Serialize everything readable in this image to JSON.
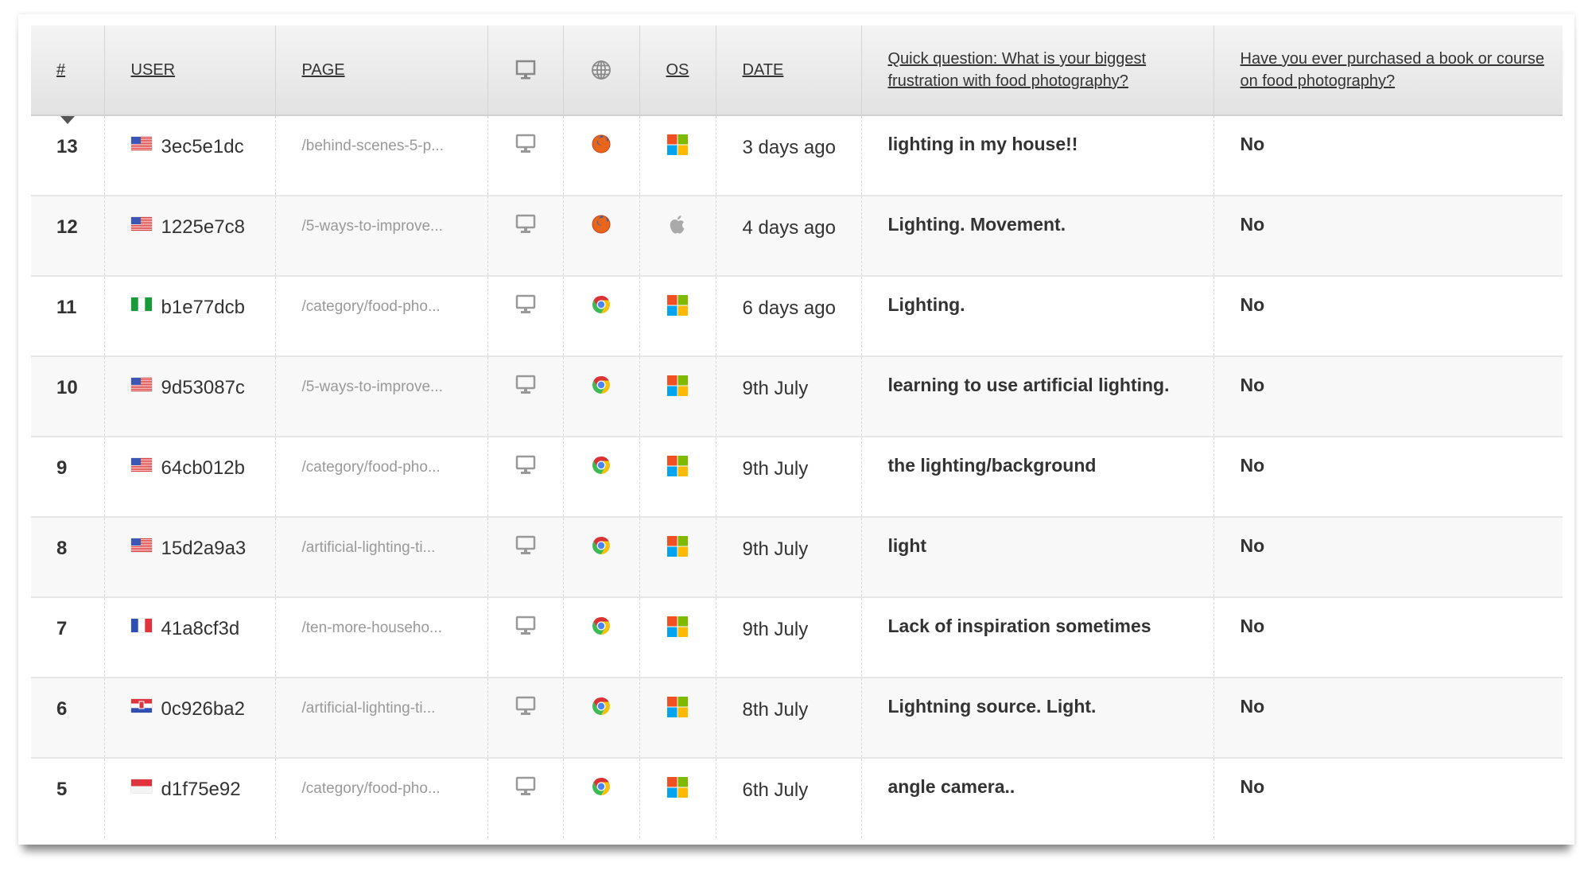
{
  "table": {
    "headers": {
      "num": "#",
      "user": "USER",
      "page": "PAGE",
      "device_icon": "monitor-icon",
      "browser_icon": "globe-icon",
      "os": "OS",
      "date": "DATE",
      "q1": "Quick question: What is your biggest frustration with food photography?",
      "q2": "Have you ever purchased a book or course on food photography?"
    },
    "sort": {
      "column": "#",
      "direction": "descending"
    },
    "rows": [
      {
        "num": "13",
        "flag": "us",
        "user": "3ec5e1dc",
        "page": "/behind-scenes-5-p...",
        "device": "desktop",
        "browser": "firefox",
        "os": "windows",
        "date": "3 days ago",
        "q1": "lighting in my house!!",
        "q2": "No"
      },
      {
        "num": "12",
        "flag": "us",
        "user": "1225e7c8",
        "page": "/5-ways-to-improve...",
        "device": "desktop",
        "browser": "firefox",
        "os": "apple",
        "date": "4 days ago",
        "q1": "Lighting. Movement.",
        "q2": "No"
      },
      {
        "num": "11",
        "flag": "ng",
        "user": "b1e77dcb",
        "page": "/category/food-pho...",
        "device": "desktop",
        "browser": "chrome",
        "os": "windows",
        "date": "6 days ago",
        "q1": "Lighting.",
        "q2": "No"
      },
      {
        "num": "10",
        "flag": "us",
        "user": "9d53087c",
        "page": "/5-ways-to-improve...",
        "device": "desktop",
        "browser": "chrome",
        "os": "windows",
        "date": "9th July",
        "q1": "learning to use artificial lighting.",
        "q2": "No"
      },
      {
        "num": "9",
        "flag": "us",
        "user": "64cb012b",
        "page": "/category/food-pho...",
        "device": "desktop",
        "browser": "chrome",
        "os": "windows",
        "date": "9th July",
        "q1": "the lighting/background",
        "q2": "No"
      },
      {
        "num": "8",
        "flag": "us",
        "user": "15d2a9a3",
        "page": "/artificial-lighting-ti...",
        "device": "desktop",
        "browser": "chrome",
        "os": "windows",
        "date": "9th July",
        "q1": "light",
        "q2": "No"
      },
      {
        "num": "7",
        "flag": "fr",
        "user": "41a8cf3d",
        "page": "/ten-more-househo...",
        "device": "desktop",
        "browser": "chrome",
        "os": "windows",
        "date": "9th July",
        "q1": "Lack of inspiration sometimes",
        "q2": "No"
      },
      {
        "num": "6",
        "flag": "hr",
        "user": "0c926ba2",
        "page": "/artificial-lighting-ti...",
        "device": "desktop",
        "browser": "chrome",
        "os": "windows",
        "date": "8th July",
        "q1": "Lightning source. Light.",
        "q2": "No"
      },
      {
        "num": "5",
        "flag": "id",
        "user": "d1f75e92",
        "page": "/category/food-pho...",
        "device": "desktop",
        "browser": "chrome",
        "os": "windows",
        "date": "6th July",
        "q1": "angle camera..",
        "q2": "No"
      }
    ]
  }
}
